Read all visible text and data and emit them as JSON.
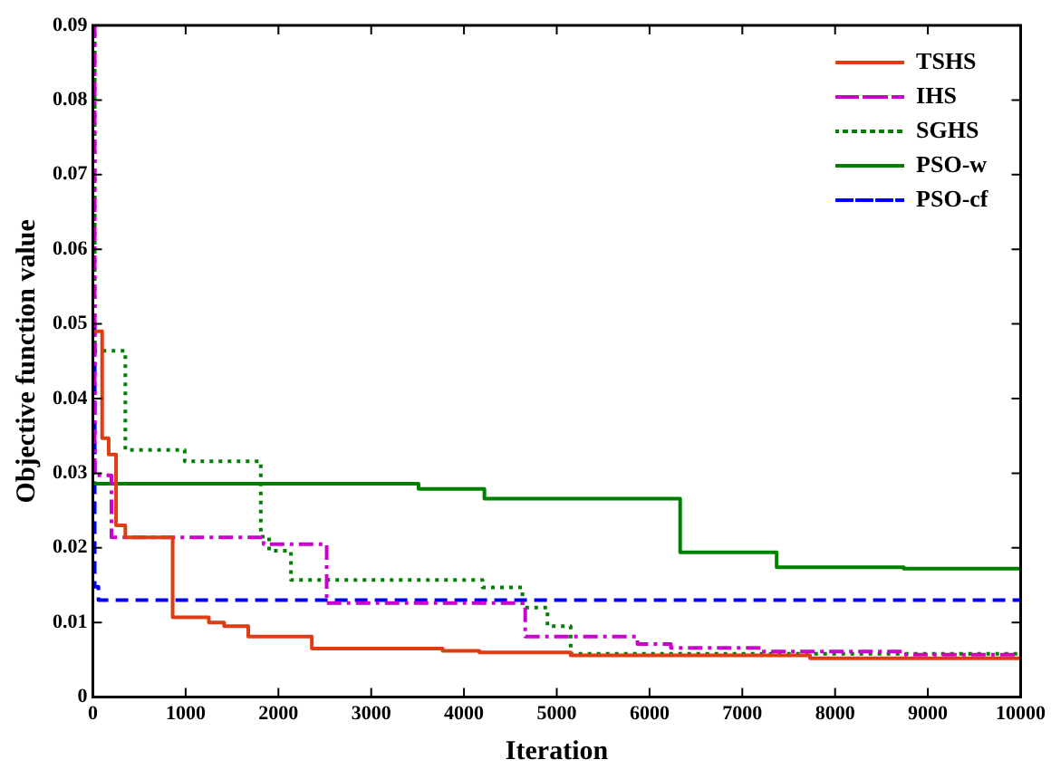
{
  "chart_data": {
    "type": "step",
    "xlabel": "Iteration",
    "ylabel": "Objective function value",
    "xlim": [
      0,
      10000
    ],
    "xticks": [
      0,
      1000,
      2000,
      3000,
      4000,
      5000,
      6000,
      7000,
      8000,
      9000,
      10000
    ],
    "ylim": [
      0,
      0.09
    ],
    "yticks": [
      0,
      0.01,
      0.02,
      0.03,
      0.04,
      0.05,
      0.06,
      0.07,
      0.08,
      0.09
    ],
    "grid": false,
    "legend": "top right",
    "series": [
      {
        "name": "TSHS",
        "color": "#e03c14",
        "line_style": "solid",
        "x": [
          0,
          100,
          170,
          250,
          350,
          860,
          1250,
          1415,
          1675,
          2360,
          3770,
          4165,
          5150,
          7730,
          10000
        ],
        "values": [
          0.049,
          0.0347,
          0.0325,
          0.023,
          0.0214,
          0.0107,
          0.01,
          0.0095,
          0.0081,
          0.0065,
          0.0062,
          0.006,
          0.0056,
          0.0052,
          0.0052
        ]
      },
      {
        "name": "IHS",
        "color": "#cc00cc",
        "line_style": "dashdot",
        "x": [
          0,
          20,
          200,
          1840,
          2520,
          4660,
          5870,
          6230,
          7210,
          8740,
          10000
        ],
        "values": [
          0.09,
          0.0297,
          0.0214,
          0.0205,
          0.0126,
          0.0081,
          0.0071,
          0.0066,
          0.0061,
          0.0057,
          0.0057
        ]
      },
      {
        "name": "SGHS",
        "color": "#008000",
        "line_style": "dotted",
        "x": [
          0,
          20,
          350,
          990,
          1810,
          1900,
          2135,
          4200,
          4630,
          4900,
          5150,
          10000
        ],
        "values": [
          0.09,
          0.0464,
          0.0331,
          0.0316,
          0.0215,
          0.0196,
          0.0157,
          0.0147,
          0.012,
          0.0095,
          0.0058,
          0.0055
        ]
      },
      {
        "name": "PSO-w",
        "color": "#008000",
        "line_style": "solid",
        "x": [
          0,
          3510,
          4220,
          6330,
          7370,
          8740,
          10000
        ],
        "values": [
          0.0286,
          0.0279,
          0.0266,
          0.0194,
          0.0174,
          0.0172,
          0.0172
        ]
      },
      {
        "name": "PSO-cf",
        "color": "#0000ff",
        "line_style": "dashed",
        "x": [
          0,
          20,
          60,
          10000
        ],
        "values": [
          0.05,
          0.0148,
          0.013,
          0.013
        ]
      }
    ]
  }
}
